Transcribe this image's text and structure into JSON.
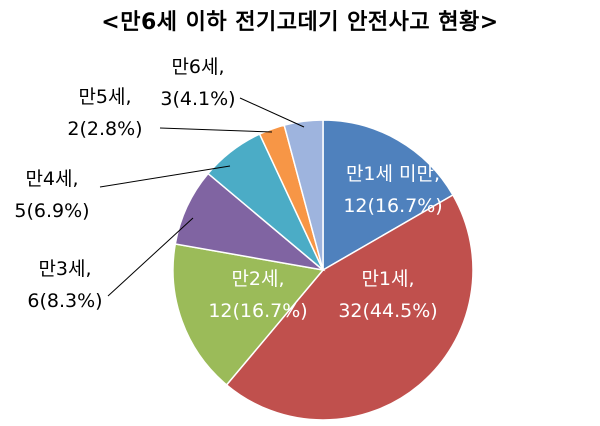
{
  "chart_data": {
    "type": "pie",
    "title": "<만6세 이하 전기고데기 안전사고 현황>",
    "slices": [
      {
        "category": "만1세 미만",
        "value": 12,
        "percent": "16.7%",
        "label_line1": "만1세 미만,",
        "label_line2": "12(16.7%)",
        "color": "#4F81BD",
        "label_position": "inside"
      },
      {
        "category": "만1세",
        "value": 32,
        "percent": "44.5%",
        "label_line1": "만1세,",
        "label_line2": "32(44.5%)",
        "color": "#C0504D",
        "label_position": "inside"
      },
      {
        "category": "만2세",
        "value": 12,
        "percent": "16.7%",
        "label_line1": "만2세,",
        "label_line2": "12(16.7%)",
        "color": "#9BBB59",
        "label_position": "inside"
      },
      {
        "category": "만3세",
        "value": 6,
        "percent": "8.3%",
        "label_line1": "만3세,",
        "label_line2": "6(8.3%)",
        "color": "#8064A2",
        "label_position": "outside"
      },
      {
        "category": "만4세",
        "value": 5,
        "percent": "6.9%",
        "label_line1": "만4세,",
        "label_line2": "5(6.9%)",
        "color": "#4BACC6",
        "label_position": "outside"
      },
      {
        "category": "만5세",
        "value": 2,
        "percent": "2.8%",
        "label_line1": "만5세,",
        "label_line2": "2(2.8%)",
        "color": "#F79646",
        "label_position": "outside"
      },
      {
        "category": "만6세",
        "value": 3,
        "percent": "4.1%",
        "label_line1": "만6세,",
        "label_line2": "3(4.1%)",
        "color": "#9EB4DE",
        "label_position": "outside"
      }
    ]
  }
}
